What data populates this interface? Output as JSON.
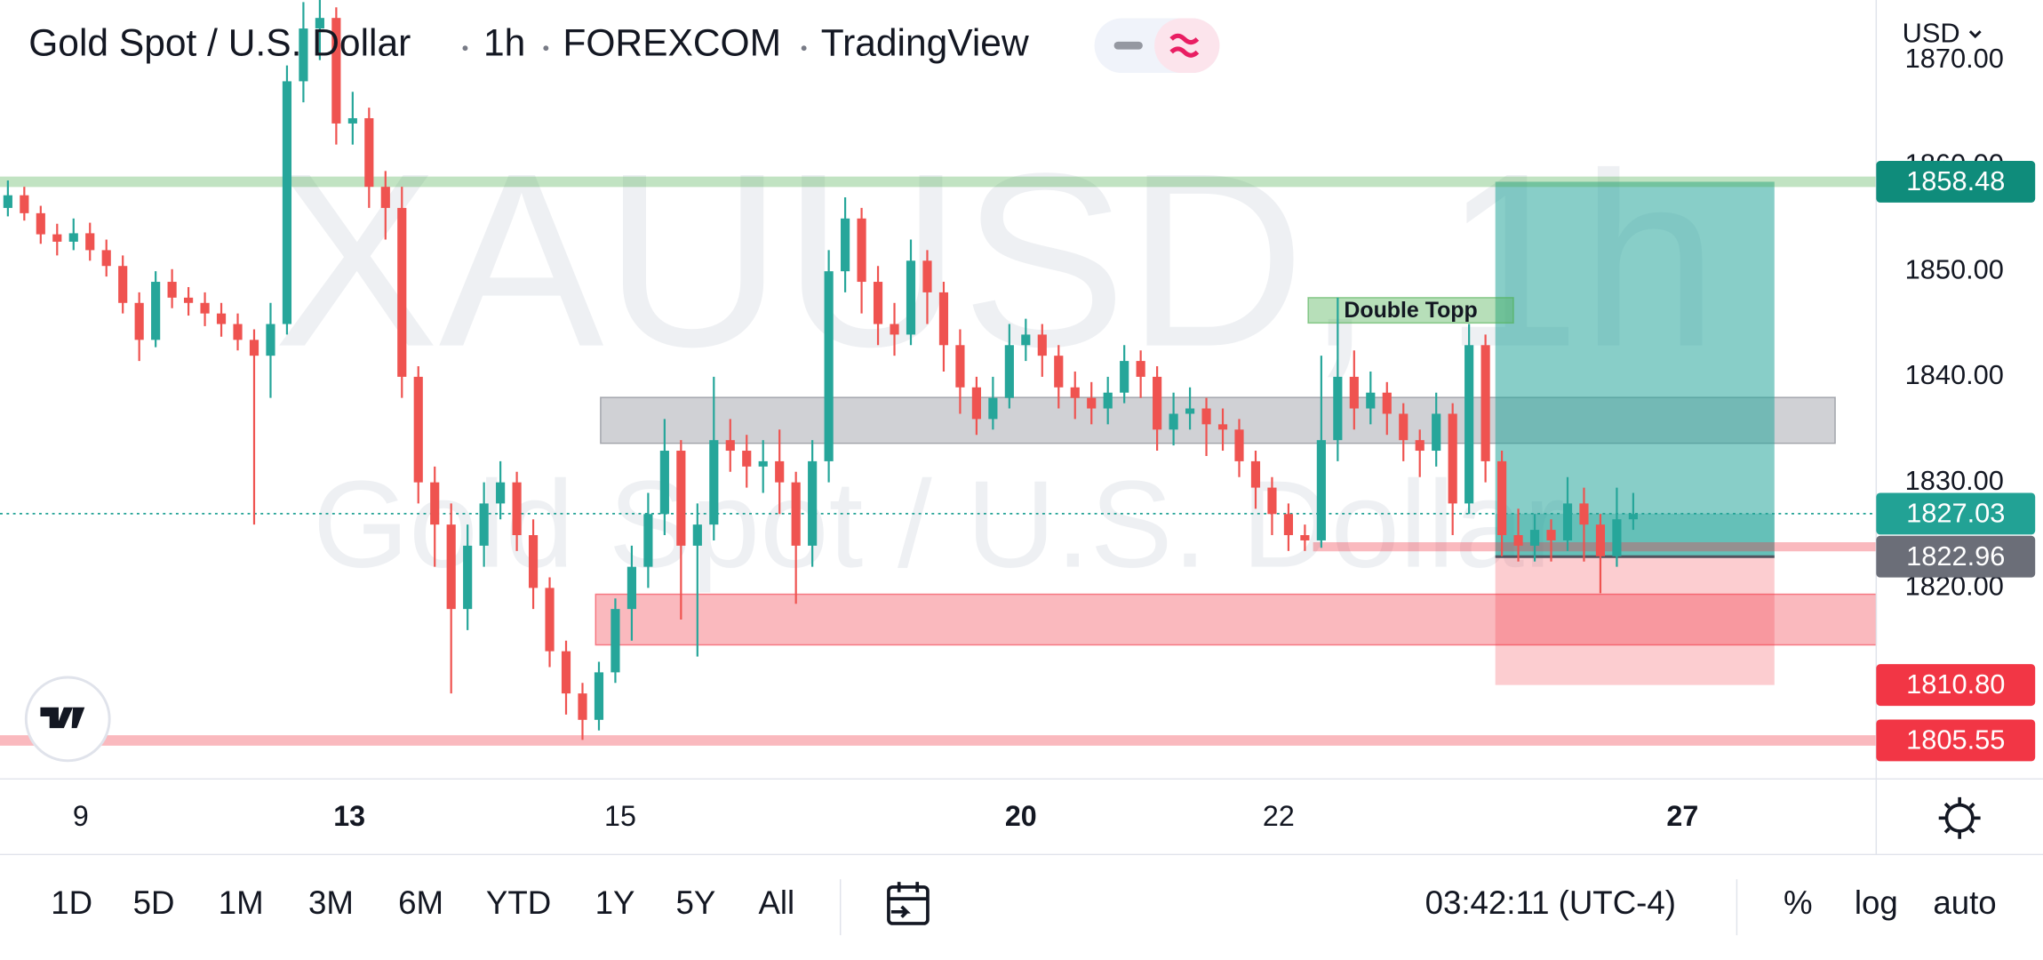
{
  "header": {
    "symbol": "Gold Spot / U.S. Dollar",
    "interval": "1h",
    "exchange": "FOREXCOM",
    "source": "TradingView",
    "currency": "USD"
  },
  "watermark": {
    "ticker": "XAUUSD, 1h",
    "name": "Gold Spot / U.S. Dollar"
  },
  "chart_data": {
    "type": "candlestick",
    "up_color": "#26a69a",
    "down_color": "#ef5350",
    "xlim": [
      -0.48,
      113.8
    ],
    "ylim": [
      1801.9,
      1875.7
    ],
    "xticks": [
      {
        "value": 4.44,
        "label": "9"
      },
      {
        "value": 20.8,
        "label": "13",
        "bold": true
      },
      {
        "value": 37.3,
        "label": "15"
      },
      {
        "value": 61.7,
        "label": "20",
        "bold": true
      },
      {
        "value": 77.4,
        "label": "22"
      },
      {
        "value": 102,
        "label": "27",
        "bold": true
      }
    ],
    "yticks": [
      {
        "value": 1820,
        "label": "1820.00"
      },
      {
        "value": 1830,
        "label": "1830.00"
      },
      {
        "value": 1840,
        "label": "1840.00"
      },
      {
        "value": 1850,
        "label": "1850.00"
      },
      {
        "value": 1860,
        "label": "1860.00"
      },
      {
        "value": 1870,
        "label": "1870.00"
      }
    ],
    "open": [
      1856,
      1857.2,
      1855.5,
      1853.5,
      1852.8,
      1853.6,
      1852,
      1850.5,
      1847,
      1843.5,
      1849,
      1847.5,
      1847,
      1846,
      1845,
      1843.5,
      1842,
      1845,
      1868,
      1873,
      1874,
      1864,
      1864.5,
      1858,
      1856,
      1840,
      1830,
      1826,
      1818,
      1824,
      1828,
      1830,
      1825,
      1820,
      1814,
      1810,
      1807.5,
      1812,
      1818,
      1822,
      1827,
      1833,
      1824,
      1826,
      1834,
      1833,
      1831.5,
      1832,
      1830,
      1824,
      1832,
      1850,
      1855,
      1849,
      1845,
      1844,
      1851,
      1848,
      1843,
      1839,
      1836,
      1838,
      1843,
      1844,
      1842,
      1839,
      1838,
      1837,
      1838.5,
      1841.5,
      1840,
      1835,
      1836.5,
      1837,
      1835.5,
      1835,
      1832,
      1829.5,
      1827,
      1825,
      1824.5,
      1834,
      1840,
      1837,
      1838.5,
      1836.5,
      1834,
      1833,
      1836.5,
      1828,
      1843,
      1832,
      1825,
      1824,
      1825.5,
      1824.5,
      1828,
      1826,
      1823,
      1826.5
    ],
    "high": [
      1858.6,
      1858,
      1856.2,
      1854.5,
      1855,
      1854.6,
      1853,
      1851.5,
      1848,
      1850,
      1850.2,
      1848.5,
      1848,
      1847,
      1846,
      1844.5,
      1847,
      1869.5,
      1875.5,
      1875.7,
      1875,
      1867,
      1865.5,
      1859.5,
      1858,
      1841,
      1831.5,
      1828,
      1826,
      1830,
      1832,
      1831,
      1826.5,
      1821,
      1815,
      1811,
      1813,
      1819,
      1824,
      1829,
      1836,
      1834,
      1828,
      1840,
      1836,
      1834.5,
      1834,
      1835,
      1831,
      1834,
      1852,
      1857,
      1856,
      1850.5,
      1847,
      1853,
      1852,
      1849,
      1844.5,
      1840,
      1840,
      1845,
      1845.5,
      1845,
      1843,
      1840.5,
      1839.5,
      1840,
      1843,
      1842.5,
      1841,
      1838.5,
      1839,
      1838,
      1837,
      1836,
      1833,
      1830.5,
      1828,
      1826,
      1842,
      1847.5,
      1842.5,
      1840.5,
      1839.5,
      1837.5,
      1835,
      1838.5,
      1837.5,
      1845,
      1844,
      1833,
      1827.5,
      1827,
      1826.5,
      1830.5,
      1829.5,
      1827,
      1829.5,
      1829
    ],
    "low": [
      1855.2,
      1854.8,
      1852.6,
      1851.5,
      1852,
      1851,
      1849.5,
      1846,
      1841.5,
      1842.8,
      1846.5,
      1845.8,
      1844.8,
      1843.8,
      1842.5,
      1826,
      1838,
      1844,
      1866,
      1870,
      1862,
      1862,
      1856,
      1853,
      1838,
      1828,
      1822,
      1810,
      1816,
      1822,
      1826.5,
      1823.5,
      1818,
      1812.5,
      1808,
      1805.6,
      1806.5,
      1811,
      1815,
      1820,
      1825,
      1817,
      1813.5,
      1824.5,
      1831,
      1829.5,
      1829,
      1827,
      1818.5,
      1822,
      1830,
      1848,
      1846,
      1843,
      1842,
      1843,
      1845,
      1840.5,
      1836.5,
      1834.5,
      1835,
      1837,
      1841.5,
      1840,
      1837,
      1836,
      1835.5,
      1835.5,
      1837.5,
      1838,
      1833,
      1833.5,
      1835,
      1832.5,
      1833,
      1830.5,
      1827.5,
      1825,
      1823.5,
      1823.5,
      1823.8,
      1832,
      1835,
      1835.5,
      1834.5,
      1832,
      1830.5,
      1831.5,
      1825,
      1827,
      1830,
      1823,
      1822.5,
      1822.5,
      1822.5,
      1823.5,
      1822.5,
      1819.5,
      1822,
      1825.5
    ],
    "close": [
      1857.2,
      1855.5,
      1853.5,
      1852.8,
      1853.6,
      1852,
      1850.5,
      1847,
      1843.5,
      1849,
      1847.5,
      1847,
      1846,
      1845,
      1843.5,
      1842,
      1845,
      1868,
      1873,
      1874,
      1864,
      1864.5,
      1858,
      1856,
      1840,
      1830,
      1826,
      1818,
      1824,
      1828,
      1830,
      1825,
      1820,
      1814,
      1810,
      1807.5,
      1812,
      1818,
      1822,
      1827,
      1833,
      1824,
      1826,
      1834,
      1833,
      1831.5,
      1832,
      1830,
      1824,
      1832,
      1850,
      1855,
      1849,
      1845,
      1844,
      1851,
      1848,
      1843,
      1839,
      1836,
      1838,
      1843,
      1844,
      1842,
      1839,
      1838,
      1837,
      1838.5,
      1841.5,
      1840,
      1835,
      1836.5,
      1837,
      1835.5,
      1835,
      1832,
      1829.5,
      1827,
      1825,
      1824.5,
      1834,
      1840,
      1837,
      1838.5,
      1836.5,
      1834,
      1833,
      1836.5,
      1828,
      1843,
      1832,
      1825,
      1824,
      1825.5,
      1824.5,
      1828,
      1826,
      1823,
      1826.5,
      1827
    ],
    "price_labels": [
      {
        "value": 1858.48,
        "color": "#0f8c7b",
        "line": "#4caf50"
      },
      {
        "value": 1827.03,
        "color": "#22a295",
        "dotted": true
      },
      {
        "value": 1822.96,
        "color": "#6b6e78"
      },
      {
        "value": 1810.8,
        "label": "1810.80",
        "color": "#f23645"
      },
      {
        "value": 1805.55,
        "color": "#f23645",
        "line": "#f23645"
      }
    ],
    "zones": [
      {
        "from": 36.1,
        "to": 111.3,
        "top": 1838.05,
        "bottom": 1833.7,
        "color": "#787b86"
      },
      {
        "from": 35.8,
        "to": 113.8,
        "top": 1819.4,
        "bottom": 1814.6,
        "color": "#f23645"
      }
    ],
    "levels": [
      {
        "value": 1823.9,
        "from": 79.5,
        "color": "#f23645"
      }
    ],
    "position": {
      "from": 90.6,
      "to": 107.6,
      "target": 1858.48,
      "entry": 1822.96,
      "stop": 1810.8,
      "current": 1827.03
    },
    "annotations": [
      {
        "text": "Double Topp",
        "from": 79.2,
        "to": 91.7,
        "top": 1847.5,
        "bottom": 1845.1,
        "color": "#4caf50"
      }
    ]
  },
  "toolbar": {
    "ranges": [
      "1D",
      "5D",
      "1M",
      "3M",
      "6M",
      "YTD",
      "1Y",
      "5Y",
      "All"
    ],
    "clock": "03:42:11 (UTC-4)",
    "percent": "%",
    "log": "log",
    "auto": "auto"
  }
}
